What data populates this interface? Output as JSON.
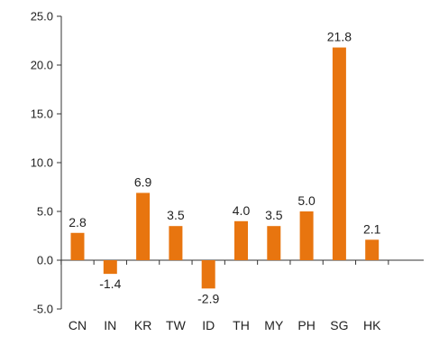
{
  "chart_data": {
    "type": "bar",
    "categories": [
      "CN",
      "IN",
      "KR",
      "TW",
      "ID",
      "TH",
      "MY",
      "PH",
      "SG",
      "HK"
    ],
    "values": [
      2.8,
      -1.4,
      6.9,
      3.5,
      -2.9,
      4.0,
      3.5,
      5.0,
      21.8,
      2.1
    ],
    "value_labels": [
      "2.8",
      "-1.4",
      "6.9",
      "3.5",
      "-2.9",
      "4.0",
      "3.5",
      "5.0",
      "21.8",
      "2.1"
    ],
    "yticks": [
      "-5.0",
      "0.0",
      "5.0",
      "10.0",
      "15.0",
      "20.0",
      "25.0"
    ],
    "ylim": [
      -5,
      25
    ],
    "title": "",
    "xlabel": "",
    "ylabel": "",
    "grid": false,
    "legend": "none",
    "colors": {
      "bar": "#E8750F",
      "axis": "#333333"
    }
  }
}
